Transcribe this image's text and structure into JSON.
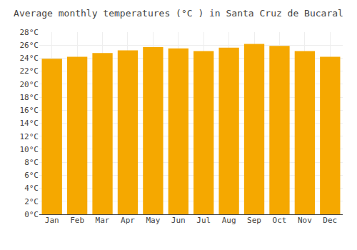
{
  "chart_data": {
    "type": "bar",
    "title": "Average monthly temperatures (°C ) in Santa Cruz de Bucaral",
    "categories": [
      "Jan",
      "Feb",
      "Mar",
      "Apr",
      "May",
      "Jun",
      "Jul",
      "Aug",
      "Sep",
      "Oct",
      "Nov",
      "Dec"
    ],
    "values": [
      23.9,
      24.2,
      24.8,
      25.2,
      25.7,
      25.5,
      25.1,
      25.6,
      26.2,
      25.9,
      25.1,
      24.2
    ],
    "color": "#F5A800",
    "ylim": [
      0,
      28
    ],
    "yticks": [
      {
        "value": 0,
        "label": "0°C"
      },
      {
        "value": 2,
        "label": "2°C"
      },
      {
        "value": 4,
        "label": "4°C"
      },
      {
        "value": 6,
        "label": "6°C"
      },
      {
        "value": 8,
        "label": "8°C"
      },
      {
        "value": 10,
        "label": "10°C"
      },
      {
        "value": 12,
        "label": "12°C"
      },
      {
        "value": 14,
        "label": "14°C"
      },
      {
        "value": 16,
        "label": "16°C"
      },
      {
        "value": 18,
        "label": "18°C"
      },
      {
        "value": 20,
        "label": "20°C"
      },
      {
        "value": 22,
        "label": "22°C"
      },
      {
        "value": 24,
        "label": "24°C"
      },
      {
        "value": 26,
        "label": "26°C"
      },
      {
        "value": 28,
        "label": "28°C"
      }
    ],
    "grid": true
  }
}
